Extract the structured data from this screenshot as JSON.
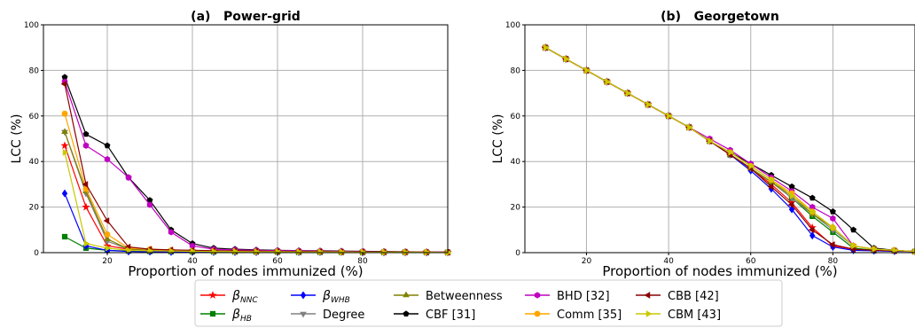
{
  "figure": {
    "legend_placement": "bottom-center",
    "legend_columns": 5
  },
  "chart_data": [
    {
      "type": "line",
      "title": "(a)   Power-grid",
      "xlabel": "Proportion of nodes immunized (%)",
      "ylabel": "LCC (%)",
      "xlim": [
        5,
        100
      ],
      "ylim": [
        0,
        100
      ],
      "xticks": [
        20,
        40,
        60,
        80
      ],
      "yticks": [
        0,
        20,
        40,
        60,
        80,
        100
      ],
      "grid": true,
      "x": [
        10,
        15,
        20,
        25,
        30,
        35,
        40,
        45,
        50,
        55,
        60,
        65,
        70,
        75,
        80,
        85,
        90,
        95,
        100
      ],
      "series": [
        {
          "name": "β_NNC",
          "color": "#ff0000",
          "marker": "star",
          "values": [
            47,
            20,
            3,
            1.5,
            1,
            0.8,
            0.7,
            0.6,
            0.5,
            0.4,
            0.4,
            0.3,
            0.3,
            0.3,
            0.2,
            0.2,
            0.2,
            0.2,
            0.1
          ]
        },
        {
          "name": "β_HB",
          "color": "#008000",
          "marker": "square",
          "values": [
            7,
            2,
            1,
            0.7,
            0.5,
            0.4,
            0.4,
            0.3,
            0.3,
            0.3,
            0.3,
            0.2,
            0.2,
            0.2,
            0.2,
            0.2,
            0.2,
            0.1,
            0.1
          ]
        },
        {
          "name": "β_WHB",
          "color": "#0000ff",
          "marker": "diamond",
          "values": [
            26,
            3,
            1,
            0.5,
            0.4,
            0.3,
            0.3,
            0.3,
            0.2,
            0.2,
            0.2,
            0.2,
            0.2,
            0.2,
            0.1,
            0.1,
            0.1,
            0.1,
            0.1
          ]
        },
        {
          "name": "Degree",
          "color": "#808080",
          "marker": "triangle-down",
          "values": [
            53,
            26,
            5,
            1.5,
            1,
            0.8,
            0.7,
            0.6,
            0.5,
            0.5,
            0.4,
            0.4,
            0.3,
            0.3,
            0.3,
            0.2,
            0.2,
            0.2,
            0.1
          ]
        },
        {
          "name": "Betweenness",
          "color": "#808000",
          "marker": "triangle-up",
          "values": [
            53,
            27,
            6,
            1.5,
            1,
            0.8,
            0.7,
            0.6,
            0.5,
            0.5,
            0.4,
            0.4,
            0.3,
            0.3,
            0.3,
            0.2,
            0.2,
            0.2,
            0.1
          ]
        },
        {
          "name": "CBF [31]",
          "color": "#000000",
          "marker": "pentagon",
          "values": [
            77,
            52,
            47,
            33,
            23,
            10,
            4,
            2,
            1.5,
            1.2,
            1,
            0.9,
            0.8,
            0.7,
            0.6,
            0.5,
            0.4,
            0.3,
            0.2
          ]
        },
        {
          "name": "BHD [32]",
          "color": "#c000c0",
          "marker": "hexagon",
          "values": [
            75,
            47,
            41,
            33,
            21,
            9,
            3,
            1.5,
            1.2,
            1,
            0.9,
            0.8,
            0.7,
            0.6,
            0.5,
            0.4,
            0.3,
            0.3,
            0.2
          ]
        },
        {
          "name": "Comm [35]",
          "color": "#ffa500",
          "marker": "octagon",
          "values": [
            61,
            28,
            8,
            2,
            1.5,
            1,
            0.8,
            0.7,
            0.6,
            0.5,
            0.5,
            0.4,
            0.4,
            0.3,
            0.3,
            0.3,
            0.2,
            0.2,
            0.1
          ]
        },
        {
          "name": "CBB [42]",
          "color": "#8b0000",
          "marker": "triangle-left",
          "values": [
            74,
            30,
            14,
            2.5,
            1.5,
            1.2,
            1,
            0.9,
            0.8,
            0.7,
            0.6,
            0.5,
            0.5,
            0.4,
            0.4,
            0.3,
            0.3,
            0.2,
            0.2
          ]
        },
        {
          "name": "CBM [43]",
          "color": "#c8c800",
          "marker": "triangle-right",
          "values": [
            44,
            4,
            2,
            1,
            0.8,
            0.7,
            0.6,
            0.5,
            0.5,
            0.4,
            0.4,
            0.3,
            0.3,
            0.3,
            0.2,
            0.2,
            0.2,
            0.2,
            0.1
          ]
        }
      ]
    },
    {
      "type": "line",
      "title": "(b)   Georgetown",
      "xlabel": "Proportion of nodes immunized (%)",
      "ylabel": "LCC (%)",
      "xlim": [
        5,
        100
      ],
      "ylim": [
        0,
        100
      ],
      "xticks": [
        20,
        40,
        60,
        80
      ],
      "yticks": [
        0,
        20,
        40,
        60,
        80,
        100
      ],
      "grid": true,
      "x": [
        10,
        15,
        20,
        25,
        30,
        35,
        40,
        45,
        50,
        55,
        60,
        65,
        70,
        75,
        80,
        85,
        90,
        95,
        100
      ],
      "series": [
        {
          "name": "β_NNC",
          "color": "#ff0000",
          "marker": "star",
          "values": [
            90,
            85,
            80,
            75,
            70,
            65,
            60,
            55,
            49,
            43,
            37,
            30,
            22,
            11,
            3,
            1.5,
            1,
            0.8,
            0.5
          ]
        },
        {
          "name": "β_HB",
          "color": "#008000",
          "marker": "square",
          "values": [
            90,
            85,
            80,
            75,
            70,
            65,
            60,
            55,
            49,
            43,
            37,
            31,
            24,
            16,
            9,
            2,
            1,
            0.8,
            0.5
          ]
        },
        {
          "name": "β_WHB",
          "color": "#0000ff",
          "marker": "diamond",
          "values": [
            90,
            85,
            80,
            75,
            70,
            65,
            60,
            55,
            49,
            43,
            36,
            28,
            19,
            7.5,
            2.5,
            1,
            0.8,
            0.6,
            0.5
          ]
        },
        {
          "name": "Degree",
          "color": "#808080",
          "marker": "triangle-down",
          "values": [
            90,
            85,
            80,
            75,
            70,
            65,
            60,
            55,
            49,
            43,
            37,
            31,
            24,
            17,
            10,
            3,
            1.5,
            1,
            0.5
          ]
        },
        {
          "name": "Betweenness",
          "color": "#808000",
          "marker": "triangle-up",
          "values": [
            90,
            85,
            80,
            75,
            70,
            65,
            60,
            55,
            49,
            43,
            37,
            31,
            25,
            17,
            11,
            3,
            1.5,
            1,
            0.5
          ]
        },
        {
          "name": "CBF [31]",
          "color": "#000000",
          "marker": "pentagon",
          "values": [
            90,
            85,
            80,
            75,
            70,
            65,
            60,
            55,
            49,
            44,
            39,
            34,
            29,
            24,
            18,
            10,
            2,
            1,
            0.5
          ]
        },
        {
          "name": "BHD [32]",
          "color": "#c000c0",
          "marker": "hexagon",
          "values": [
            90,
            85,
            80,
            75,
            70,
            65,
            60,
            55,
            50,
            45,
            39,
            33,
            27,
            20,
            15,
            3,
            1.5,
            1,
            0.5
          ]
        },
        {
          "name": "Comm [35]",
          "color": "#ffa500",
          "marker": "octagon",
          "values": [
            90,
            85,
            80,
            75,
            70,
            65,
            60,
            55,
            49,
            44,
            38,
            32,
            26,
            18,
            11,
            3,
            1.5,
            1,
            0.5
          ]
        },
        {
          "name": "CBB [42]",
          "color": "#8b0000",
          "marker": "triangle-left",
          "values": [
            90,
            85,
            80,
            75,
            70,
            65,
            60,
            55,
            49,
            43,
            37,
            29,
            21,
            10,
            3.5,
            1.5,
            1,
            0.8,
            0.5
          ]
        },
        {
          "name": "CBM [43]",
          "color": "#c8c800",
          "marker": "triangle-right",
          "values": [
            90,
            85,
            80,
            75,
            70,
            65,
            60,
            55,
            49,
            44,
            38,
            32,
            25,
            18,
            11,
            3,
            1.5,
            1,
            0.5
          ]
        }
      ]
    }
  ],
  "legend": {
    "entries": [
      {
        "base": "β",
        "sub": "NNC",
        "color": "#ff0000",
        "marker": "star"
      },
      {
        "base": "β",
        "sub": "WHB",
        "color": "#0000ff",
        "marker": "diamond"
      },
      {
        "base": "Betweenness",
        "sub": "",
        "color": "#808000",
        "marker": "triangle-up"
      },
      {
        "base": "BHD [32]",
        "sub": "",
        "color": "#c000c0",
        "marker": "hexagon"
      },
      {
        "base": "CBB [42]",
        "sub": "",
        "color": "#8b0000",
        "marker": "triangle-left"
      },
      {
        "base": "β",
        "sub": "HB",
        "color": "#008000",
        "marker": "square"
      },
      {
        "base": "Degree",
        "sub": "",
        "color": "#808080",
        "marker": "triangle-down"
      },
      {
        "base": "CBF [31]",
        "sub": "",
        "color": "#000000",
        "marker": "pentagon"
      },
      {
        "base": "Comm [35]",
        "sub": "",
        "color": "#ffa500",
        "marker": "octagon"
      },
      {
        "base": "CBM [43]",
        "sub": "",
        "color": "#c8c800",
        "marker": "triangle-right"
      }
    ]
  }
}
